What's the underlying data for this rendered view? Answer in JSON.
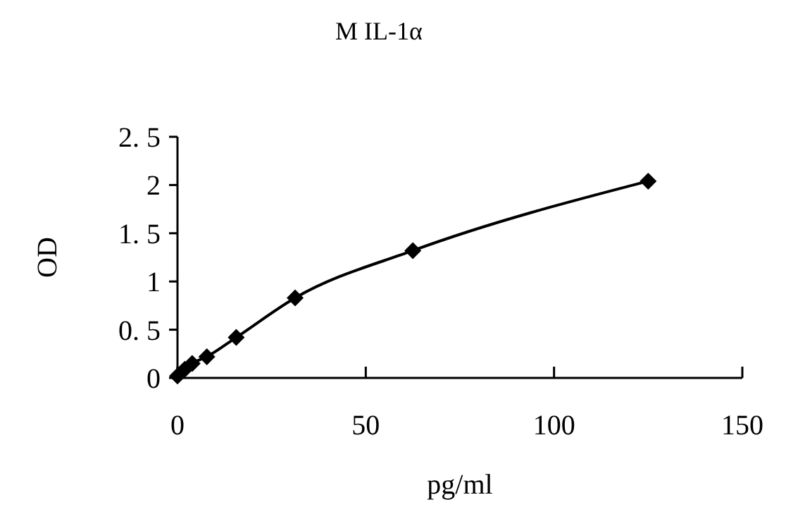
{
  "chart_data": {
    "type": "line",
    "title": "M IL-1α",
    "xlabel": "pg/ml",
    "ylabel": "OD",
    "x": [
      0,
      1.95,
      3.9,
      7.8,
      15.6,
      31.25,
      62.5,
      125
    ],
    "series": [
      {
        "color": "#000000",
        "values": [
          0.02,
          0.09,
          0.15,
          0.22,
          0.42,
          0.83,
          1.32,
          2.04
        ]
      }
    ],
    "xlim": [
      0,
      150
    ],
    "xticks": [
      0,
      50,
      100,
      150
    ],
    "ylim": [
      0,
      2.5
    ],
    "yticks": [
      0,
      {
        "value": 0.5,
        "label": "0. 5"
      },
      1,
      {
        "value": 1.5,
        "label": "1. 5"
      },
      2,
      {
        "value": 2.5,
        "label": "2. 5"
      }
    ],
    "marker": "diamond",
    "line_style": "solid",
    "grid": false
  }
}
